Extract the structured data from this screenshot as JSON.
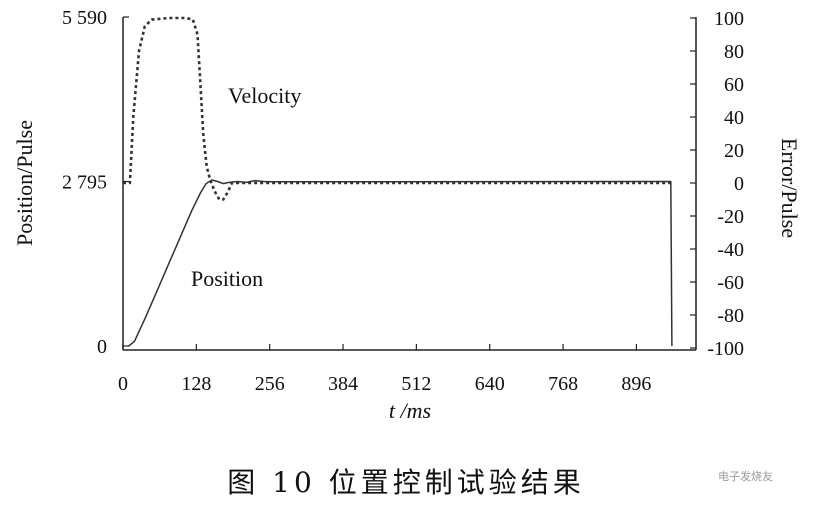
{
  "chart_data": {
    "type": "line",
    "caption": "图 10   位置控制试验结果",
    "xlabel": "t /ms",
    "ylabel_left": "Position/Pulse",
    "ylabel_right": "Error/Pulse",
    "xlim": [
      0,
      1000
    ],
    "ylim_left": [
      0,
      5590
    ],
    "ylim_right": [
      -100,
      100
    ],
    "x_ticks": [
      0,
      128,
      256,
      384,
      512,
      640,
      768,
      896
    ],
    "y_left_ticks": [
      0,
      2795,
      5590
    ],
    "y_left_tick_labels": [
      "0",
      "2 795",
      "5 590"
    ],
    "y_right_ticks": [
      100,
      80,
      60,
      40,
      20,
      0,
      -20,
      -40,
      -60,
      -80,
      -100
    ],
    "grid": false,
    "annotations": [
      {
        "text": "Velocity",
        "series": "Velocity"
      },
      {
        "text": "Position",
        "series": "Position"
      }
    ],
    "series": [
      {
        "name": "Velocity",
        "axis": "right",
        "style": "dotted",
        "points": [
          [
            0,
            0
          ],
          [
            12,
            0
          ],
          [
            18,
            40
          ],
          [
            28,
            80
          ],
          [
            38,
            95
          ],
          [
            50,
            99
          ],
          [
            80,
            100
          ],
          [
            110,
            100
          ],
          [
            122,
            99
          ],
          [
            130,
            90
          ],
          [
            135,
            60
          ],
          [
            140,
            30
          ],
          [
            146,
            10
          ],
          [
            152,
            2
          ],
          [
            160,
            -5
          ],
          [
            168,
            -10
          ],
          [
            175,
            -10
          ],
          [
            182,
            -6
          ],
          [
            190,
            0
          ],
          [
            956,
            0
          ]
        ]
      },
      {
        "name": "Position",
        "axis": "left",
        "style": "solid",
        "points": [
          [
            10,
            0
          ],
          [
            20,
            80
          ],
          [
            40,
            500
          ],
          [
            60,
            950
          ],
          [
            80,
            1400
          ],
          [
            100,
            1850
          ],
          [
            120,
            2300
          ],
          [
            135,
            2600
          ],
          [
            145,
            2760
          ],
          [
            155,
            2820
          ],
          [
            165,
            2795
          ],
          [
            175,
            2760
          ],
          [
            185,
            2780
          ],
          [
            200,
            2795
          ],
          [
            215,
            2780
          ],
          [
            230,
            2810
          ],
          [
            245,
            2795
          ],
          [
            260,
            2790
          ],
          [
            956,
            2795
          ],
          [
            958,
            0
          ]
        ]
      }
    ]
  },
  "watermark": "电子发烧友 elecfans.com"
}
